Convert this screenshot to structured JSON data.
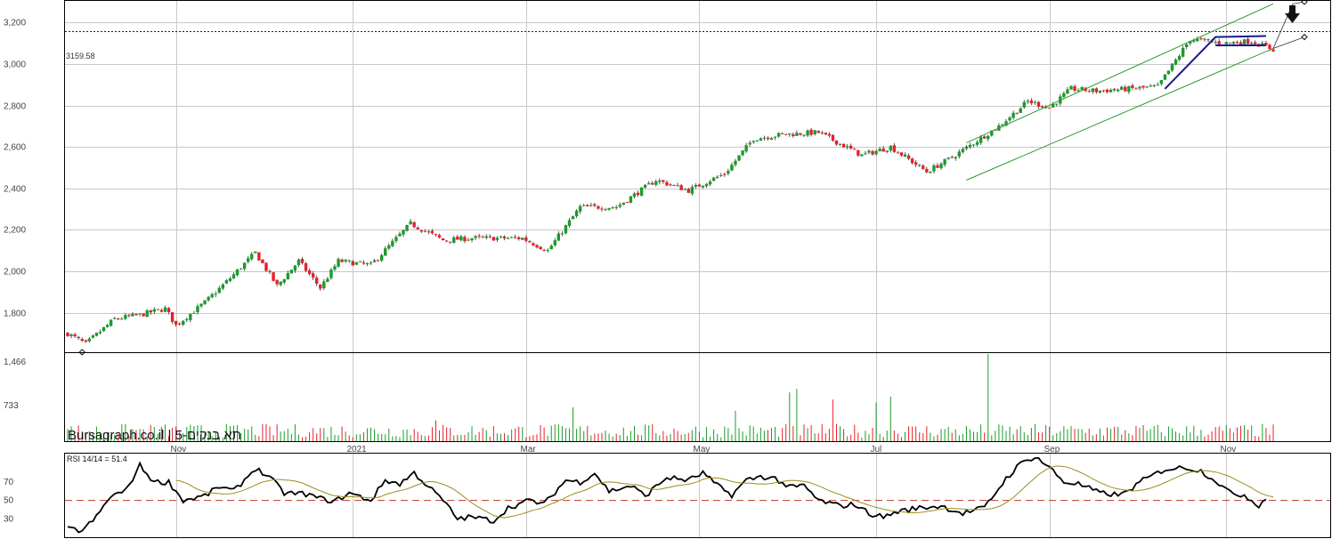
{
  "chart_data": [
    {
      "type": "candlestick",
      "name": "price-panel",
      "y_ticks": [
        "3,200",
        "3,000",
        "2,800",
        "2,600",
        "2,400",
        "2,200",
        "2,000",
        "1,800"
      ],
      "y_tick_values": [
        3200,
        3000,
        2800,
        2600,
        2400,
        2200,
        2000,
        1800
      ],
      "ylim": [
        1610,
        3300
      ],
      "reference_line": {
        "value": 3159.58,
        "label": "3159.58",
        "style": "dotted"
      },
      "x_month_labels": [
        "Nov",
        "2021",
        "Mar",
        "May",
        "Jul",
        "Sep",
        "Nov"
      ],
      "x_month_index": [
        30,
        79,
        127,
        175,
        224,
        272,
        321
      ],
      "bar_count": 335,
      "close_anchors": [
        [
          0,
          1700
        ],
        [
          5,
          1650
        ],
        [
          9,
          1710
        ],
        [
          13,
          1770
        ],
        [
          20,
          1790
        ],
        [
          27,
          1820
        ],
        [
          30,
          1740
        ],
        [
          38,
          1850
        ],
        [
          44,
          1950
        ],
        [
          52,
          2090
        ],
        [
          58,
          1930
        ],
        [
          64,
          2050
        ],
        [
          70,
          1920
        ],
        [
          75,
          2050
        ],
        [
          84,
          2030
        ],
        [
          95,
          2230
        ],
        [
          104,
          2150
        ],
        [
          112,
          2160
        ],
        [
          126,
          2160
        ],
        [
          133,
          2100
        ],
        [
          142,
          2310
        ],
        [
          152,
          2310
        ],
        [
          163,
          2440
        ],
        [
          172,
          2390
        ],
        [
          178,
          2440
        ],
        [
          182,
          2470
        ],
        [
          190,
          2640
        ],
        [
          198,
          2660
        ],
        [
          208,
          2670
        ],
        [
          220,
          2560
        ],
        [
          228,
          2600
        ],
        [
          238,
          2480
        ],
        [
          245,
          2550
        ],
        [
          258,
          2700
        ],
        [
          266,
          2820
        ],
        [
          272,
          2790
        ],
        [
          278,
          2880
        ],
        [
          285,
          2870
        ],
        [
          294,
          2880
        ],
        [
          302,
          2890
        ],
        [
          311,
          3120
        ],
        [
          320,
          3100
        ],
        [
          328,
          3110
        ],
        [
          334,
          3070
        ]
      ],
      "rising_color": "#1a9b2c",
      "falling_color": "#e8202a",
      "channel_color": "#2f9a2f",
      "pattern_color": "#1a1a8c"
    },
    {
      "type": "bar",
      "name": "volume-panel",
      "y_ticks": [
        "1,466",
        "733"
      ],
      "y_tick_values": [
        1466,
        733
      ],
      "ylim": [
        0,
        1466
      ],
      "spikes": [
        [
          255,
          1466
        ],
        [
          202,
          880
        ],
        [
          200,
          820
        ],
        [
          228,
          750
        ],
        [
          224,
          650
        ],
        [
          185,
          510
        ],
        [
          212,
          700
        ],
        [
          140,
          570
        ],
        [
          102,
          350
        ]
      ],
      "watermark": "Bursagraph.co.il | תא בנקים-5"
    },
    {
      "type": "line",
      "name": "rsi-panel",
      "label": "RSI 14/14 = 51.4",
      "y_ticks": [
        "70",
        "50",
        "30"
      ],
      "y_tick_values": [
        70,
        50,
        30
      ],
      "ylim": [
        10,
        100
      ],
      "threshold": {
        "value": 50,
        "color": "#c0392b",
        "style": "dashed"
      },
      "rsi_anchors": [
        [
          0,
          19
        ],
        [
          4,
          17
        ],
        [
          8,
          32
        ],
        [
          12,
          55
        ],
        [
          16,
          60
        ],
        [
          20,
          88
        ],
        [
          24,
          70
        ],
        [
          28,
          70
        ],
        [
          32,
          50
        ],
        [
          38,
          55
        ],
        [
          42,
          65
        ],
        [
          46,
          60
        ],
        [
          52,
          85
        ],
        [
          56,
          75
        ],
        [
          60,
          58
        ],
        [
          66,
          57
        ],
        [
          70,
          52
        ],
        [
          74,
          49
        ],
        [
          78,
          58
        ],
        [
          84,
          50
        ],
        [
          88,
          72
        ],
        [
          92,
          68
        ],
        [
          96,
          80
        ],
        [
          100,
          65
        ],
        [
          104,
          50
        ],
        [
          108,
          30
        ],
        [
          112,
          32
        ],
        [
          118,
          28
        ],
        [
          122,
          42
        ],
        [
          128,
          50
        ],
        [
          132,
          46
        ],
        [
          138,
          72
        ],
        [
          142,
          70
        ],
        [
          146,
          80
        ],
        [
          150,
          60
        ],
        [
          156,
          66
        ],
        [
          160,
          55
        ],
        [
          166,
          75
        ],
        [
          172,
          72
        ],
        [
          176,
          80
        ],
        [
          180,
          66
        ],
        [
          184,
          56
        ],
        [
          188,
          72
        ],
        [
          192,
          76
        ],
        [
          196,
          74
        ],
        [
          200,
          64
        ],
        [
          204,
          66
        ],
        [
          208,
          50
        ],
        [
          214,
          44
        ],
        [
          218,
          46
        ],
        [
          222,
          36
        ],
        [
          226,
          32
        ],
        [
          230,
          38
        ],
        [
          236,
          42
        ],
        [
          242,
          44
        ],
        [
          248,
          36
        ],
        [
          254,
          42
        ],
        [
          260,
          74
        ],
        [
          264,
          90
        ],
        [
          268,
          98
        ],
        [
          272,
          86
        ],
        [
          276,
          70
        ],
        [
          280,
          68
        ],
        [
          286,
          58
        ],
        [
          292,
          56
        ],
        [
          298,
          72
        ],
        [
          304,
          84
        ],
        [
          310,
          86
        ],
        [
          314,
          82
        ],
        [
          318,
          72
        ],
        [
          322,
          58
        ],
        [
          326,
          56
        ],
        [
          328,
          50
        ],
        [
          330,
          45
        ],
        [
          332,
          51.4
        ]
      ],
      "signal_color": "#9b8d1f"
    }
  ]
}
